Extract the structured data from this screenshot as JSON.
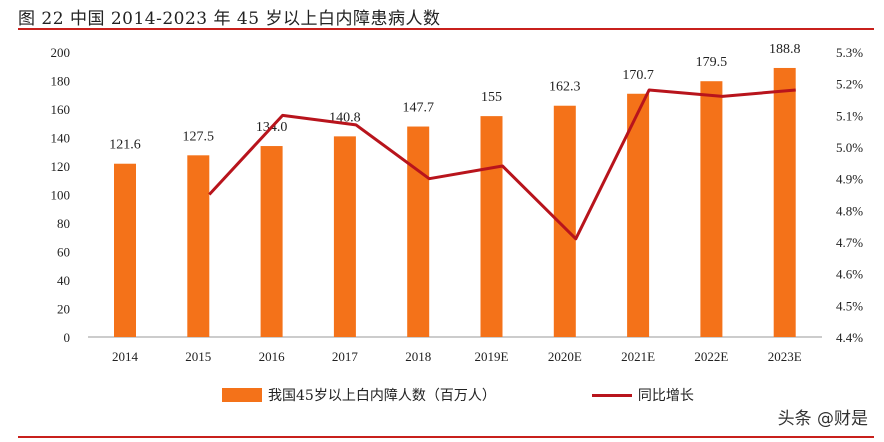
{
  "title": "图 22  中国 2014-2023 年 45 岁以上白内障患病人数",
  "watermark": "头条 @财是",
  "chart_data": {
    "type": "bar+line",
    "categories": [
      "2014",
      "2015",
      "2016",
      "2017",
      "2018",
      "2019E",
      "2020E",
      "2021E",
      "2022E",
      "2023E"
    ],
    "series": [
      {
        "name": "我国45岁以上白内障人数（百万人）",
        "type": "bar",
        "axis": "left",
        "color": "#f47219",
        "values": [
          121.6,
          127.5,
          134.0,
          140.8,
          147.7,
          155,
          162.3,
          170.7,
          179.5,
          188.8
        ],
        "labels": [
          "121.6",
          "127.5",
          "134.0",
          "140.8",
          "147.7",
          "155",
          "162.3",
          "170.7",
          "179.5",
          "188.8"
        ]
      },
      {
        "name": "同比增长",
        "type": "line",
        "axis": "right",
        "color": "#b8141c",
        "values": [
          null,
          4.85,
          5.1,
          5.07,
          4.9,
          4.94,
          4.71,
          5.18,
          5.16,
          5.18
        ]
      }
    ],
    "left_axis": {
      "ylim": [
        0,
        200
      ],
      "ticks": [
        "0",
        "20",
        "40",
        "60",
        "80",
        "100",
        "120",
        "140",
        "160",
        "180",
        "200"
      ]
    },
    "right_axis": {
      "ylim": [
        4.4,
        5.3
      ],
      "ticks": [
        "4.4%",
        "4.5%",
        "4.6%",
        "4.7%",
        "4.8%",
        "4.9%",
        "5.0%",
        "5.1%",
        "5.2%",
        "5.3%"
      ]
    },
    "legend": "bottom",
    "grid": false
  }
}
